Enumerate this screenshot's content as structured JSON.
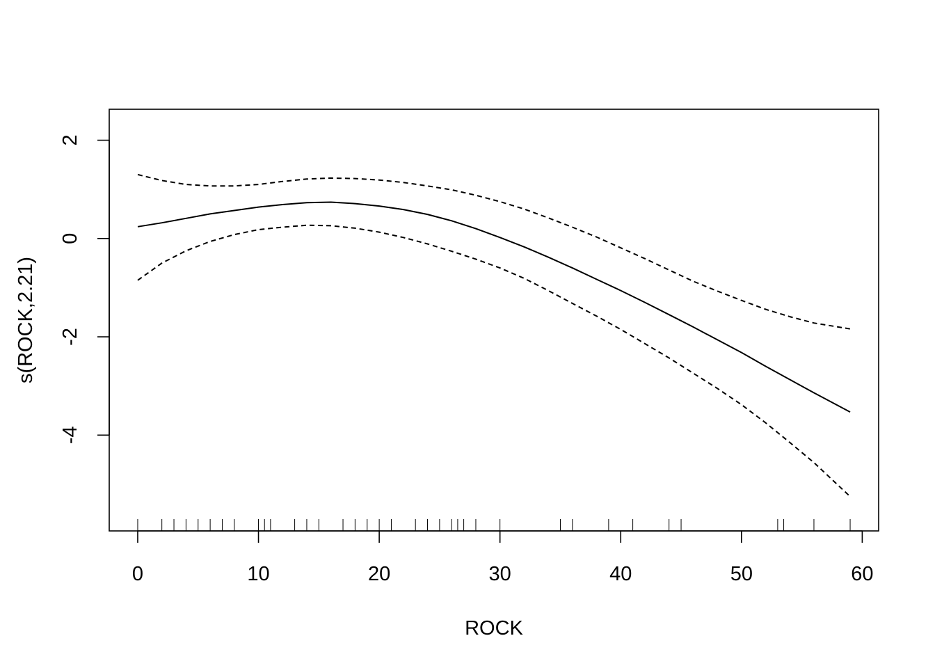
{
  "chart_data": {
    "type": "line",
    "xlabel": "ROCK",
    "ylabel": "s(ROCK,2.21)",
    "xlim": [
      -2.36,
      61.36
    ],
    "ylim": [
      -5.95,
      2.63
    ],
    "xticks": [
      0,
      10,
      20,
      30,
      40,
      50,
      60
    ],
    "xtick_labels": [
      "0",
      "10",
      "20",
      "30",
      "40",
      "50",
      "60"
    ],
    "yticks": [
      2,
      0,
      -2,
      -4
    ],
    "ytick_labels": [
      "2",
      "0",
      "-2",
      "-4"
    ],
    "grid": false,
    "series": [
      {
        "style": "solid",
        "x": [
          0,
          2,
          4,
          6,
          8,
          10,
          12,
          14,
          16,
          18,
          20,
          22,
          24,
          26,
          28,
          30,
          32,
          34,
          36,
          38,
          40,
          42,
          44,
          46,
          48,
          50,
          52,
          54,
          56,
          59
        ],
        "y": [
          0.24,
          0.32,
          0.41,
          0.5,
          0.57,
          0.64,
          0.69,
          0.73,
          0.74,
          0.71,
          0.66,
          0.59,
          0.49,
          0.36,
          0.2,
          0.02,
          -0.17,
          -0.38,
          -0.6,
          -0.83,
          -1.06,
          -1.3,
          -1.55,
          -1.8,
          -2.06,
          -2.32,
          -2.6,
          -2.87,
          -3.14,
          -3.53
        ]
      },
      {
        "style": "dashed",
        "x": [
          0,
          2,
          4,
          6,
          8,
          10,
          12,
          14,
          16,
          18,
          20,
          22,
          24,
          26,
          28,
          30,
          32,
          34,
          36,
          38,
          40,
          42,
          44,
          46,
          48,
          50,
          52,
          54,
          56,
          59
        ],
        "y": [
          1.3,
          1.18,
          1.1,
          1.07,
          1.07,
          1.1,
          1.16,
          1.21,
          1.23,
          1.22,
          1.19,
          1.14,
          1.07,
          0.99,
          0.88,
          0.75,
          0.6,
          0.42,
          0.23,
          0.03,
          -0.19,
          -0.41,
          -0.64,
          -0.87,
          -1.07,
          -1.26,
          -1.44,
          -1.59,
          -1.72,
          -1.84
        ]
      },
      {
        "style": "dashed",
        "x": [
          0,
          2,
          4,
          6,
          8,
          10,
          12,
          14,
          16,
          18,
          20,
          22,
          24,
          26,
          28,
          30,
          32,
          34,
          36,
          38,
          40,
          42,
          44,
          46,
          48,
          50,
          52,
          54,
          56,
          59
        ],
        "y": [
          -0.85,
          -0.5,
          -0.25,
          -0.06,
          0.08,
          0.18,
          0.23,
          0.27,
          0.26,
          0.21,
          0.13,
          0.02,
          -0.11,
          -0.26,
          -0.42,
          -0.6,
          -0.81,
          -1.06,
          -1.32,
          -1.58,
          -1.85,
          -2.14,
          -2.43,
          -2.74,
          -3.05,
          -3.38,
          -3.75,
          -4.15,
          -4.56,
          -5.25
        ]
      }
    ],
    "rug": [
      0,
      2,
      3,
      4,
      5,
      6,
      7,
      8,
      10,
      10.5,
      11,
      13,
      14,
      15,
      17,
      18,
      19,
      20,
      21,
      23,
      24,
      25,
      26,
      26.5,
      27,
      28,
      30,
      35,
      36,
      39,
      41,
      44,
      45,
      53,
      53.5,
      56,
      59
    ]
  }
}
